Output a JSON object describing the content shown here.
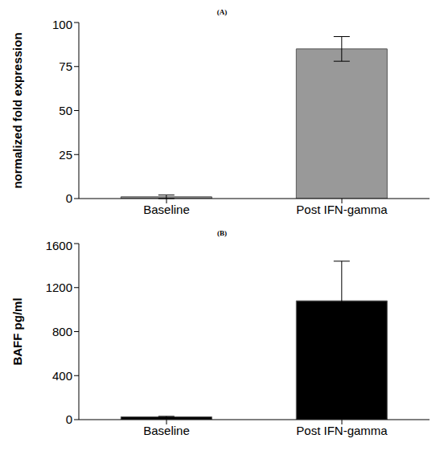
{
  "chart_data": [
    {
      "type": "bar",
      "title": "(A)",
      "ylabel": "normalized fold expression",
      "categories": [
        "Baseline",
        "Post IFN-gamma"
      ],
      "values": [
        1,
        85
      ],
      "errors": [
        1,
        7
      ],
      "color": "#999999",
      "ylim": [
        0,
        100
      ],
      "yticks": [
        0,
        25,
        50,
        75,
        100
      ],
      "grid": false
    },
    {
      "type": "bar",
      "title": "(B)",
      "ylabel": "BAFF pg/ml",
      "categories": [
        "Baseline",
        "Post IFN-gamma"
      ],
      "values": [
        25,
        1080
      ],
      "errors": [
        5,
        360
      ],
      "color": "#000000",
      "ylim": [
        0,
        1600
      ],
      "yticks": [
        0,
        400,
        800,
        1200,
        1600
      ],
      "grid": false
    }
  ]
}
